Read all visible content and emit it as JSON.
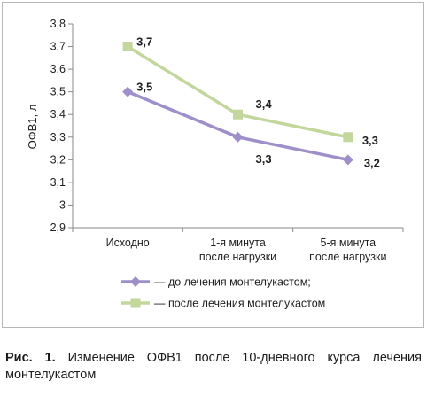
{
  "chart_data": {
    "type": "line",
    "categories": [
      "Исходно",
      "1-я минута после нагрузки",
      "5-я минута после нагрузки"
    ],
    "category_lines": [
      [
        "Исходно"
      ],
      [
        "1-я минута",
        "после нагрузки"
      ],
      [
        "5-я минута",
        "после нагрузки"
      ]
    ],
    "ylabel": "ОФВ1, л",
    "ylim": [
      2.9,
      3.8
    ],
    "yticks": [
      "2,9",
      "3",
      "3,1",
      "3,2",
      "3,3",
      "3,4",
      "3,5",
      "3,6",
      "3,7",
      "3,8"
    ],
    "grid": false,
    "legend_position": "bottom",
    "series": [
      {
        "name": "— до лечения монтелукастом;",
        "values": [
          3.5,
          3.3,
          3.2
        ],
        "labels": [
          "3,5",
          "3,3",
          "3,2"
        ],
        "color": "#9e8fca",
        "marker": "diamond"
      },
      {
        "name": "— после лечения монтелукастом",
        "values": [
          3.7,
          3.4,
          3.3
        ],
        "labels": [
          "3,7",
          "3,4",
          "3,3"
        ],
        "color": "#c3d69b",
        "marker": "square"
      }
    ]
  },
  "caption": {
    "label": "Рис. 1.",
    "text": "Изменение ОФВ1 после 10-дневного курса лечения монтелукастом"
  }
}
